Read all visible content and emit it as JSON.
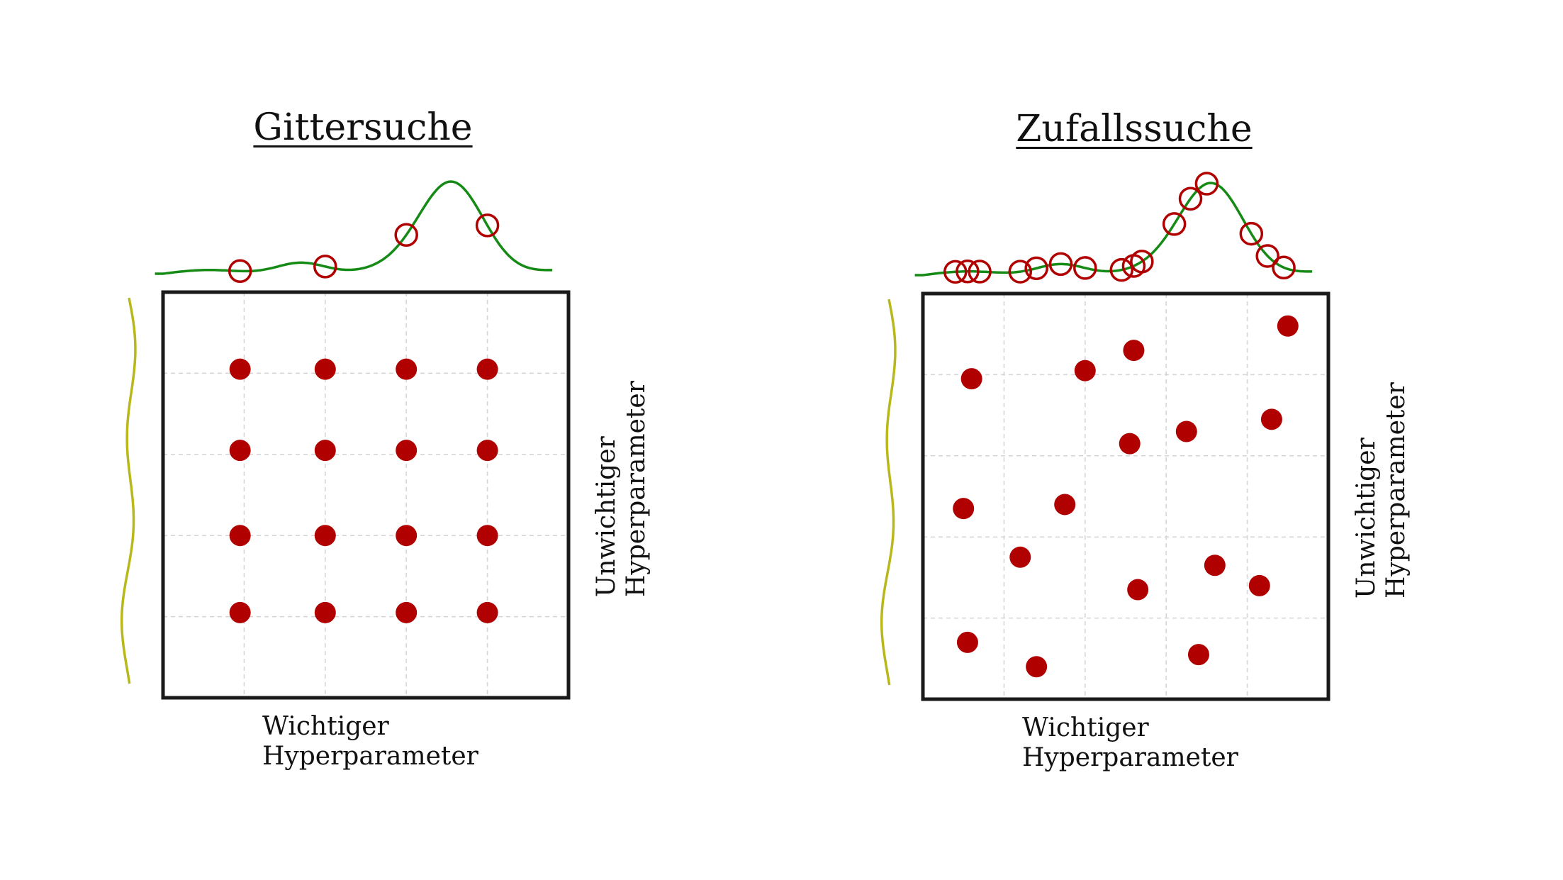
{
  "colors": {
    "background": "#ffffff",
    "frame": "#1a1a1a",
    "grid": "#d4d4d4",
    "point": "#b00000",
    "curve_top": "#158a15",
    "curve_side": "#b8b81a",
    "text": "#111111"
  },
  "panels": [
    {
      "id": "grid-search",
      "title": "Gittersuche",
      "x_label_lines": [
        "Wichtiger",
        "Hyperparameter"
      ],
      "y_label_lines": [
        "Unwichtiger",
        "Hyperparameter"
      ],
      "points": [
        {
          "x": 0.19,
          "y": 0.81
        },
        {
          "x": 0.4,
          "y": 0.81
        },
        {
          "x": 0.6,
          "y": 0.81
        },
        {
          "x": 0.8,
          "y": 0.81
        },
        {
          "x": 0.19,
          "y": 0.61
        },
        {
          "x": 0.4,
          "y": 0.61
        },
        {
          "x": 0.6,
          "y": 0.61
        },
        {
          "x": 0.8,
          "y": 0.61
        },
        {
          "x": 0.19,
          "y": 0.4
        },
        {
          "x": 0.4,
          "y": 0.4
        },
        {
          "x": 0.6,
          "y": 0.4
        },
        {
          "x": 0.8,
          "y": 0.4
        },
        {
          "x": 0.19,
          "y": 0.21
        },
        {
          "x": 0.4,
          "y": 0.21
        },
        {
          "x": 0.6,
          "y": 0.21
        },
        {
          "x": 0.8,
          "y": 0.21
        }
      ],
      "samples_on_curve": [
        0.19,
        0.4,
        0.6,
        0.8
      ]
    },
    {
      "id": "random-search",
      "title": "Zufallssuche",
      "x_label_lines": [
        "Wichtiger",
        "Hyperparameter"
      ],
      "y_label_lines": [
        "Unwichtiger",
        "Hyperparameter"
      ],
      "points": [
        {
          "x": 0.9,
          "y": 0.92
        },
        {
          "x": 0.52,
          "y": 0.86
        },
        {
          "x": 0.4,
          "y": 0.81
        },
        {
          "x": 0.12,
          "y": 0.79
        },
        {
          "x": 0.86,
          "y": 0.69
        },
        {
          "x": 0.65,
          "y": 0.66
        },
        {
          "x": 0.51,
          "y": 0.63
        },
        {
          "x": 0.35,
          "y": 0.48
        },
        {
          "x": 0.1,
          "y": 0.47
        },
        {
          "x": 0.24,
          "y": 0.35
        },
        {
          "x": 0.72,
          "y": 0.33
        },
        {
          "x": 0.83,
          "y": 0.28
        },
        {
          "x": 0.53,
          "y": 0.27
        },
        {
          "x": 0.11,
          "y": 0.14
        },
        {
          "x": 0.68,
          "y": 0.11
        },
        {
          "x": 0.28,
          "y": 0.08
        }
      ],
      "samples_on_curve": [
        0.08,
        0.11,
        0.14,
        0.24,
        0.28,
        0.34,
        0.4,
        0.49,
        0.52,
        0.54,
        0.62,
        0.66,
        0.7,
        0.81,
        0.85,
        0.89
      ]
    }
  ]
}
